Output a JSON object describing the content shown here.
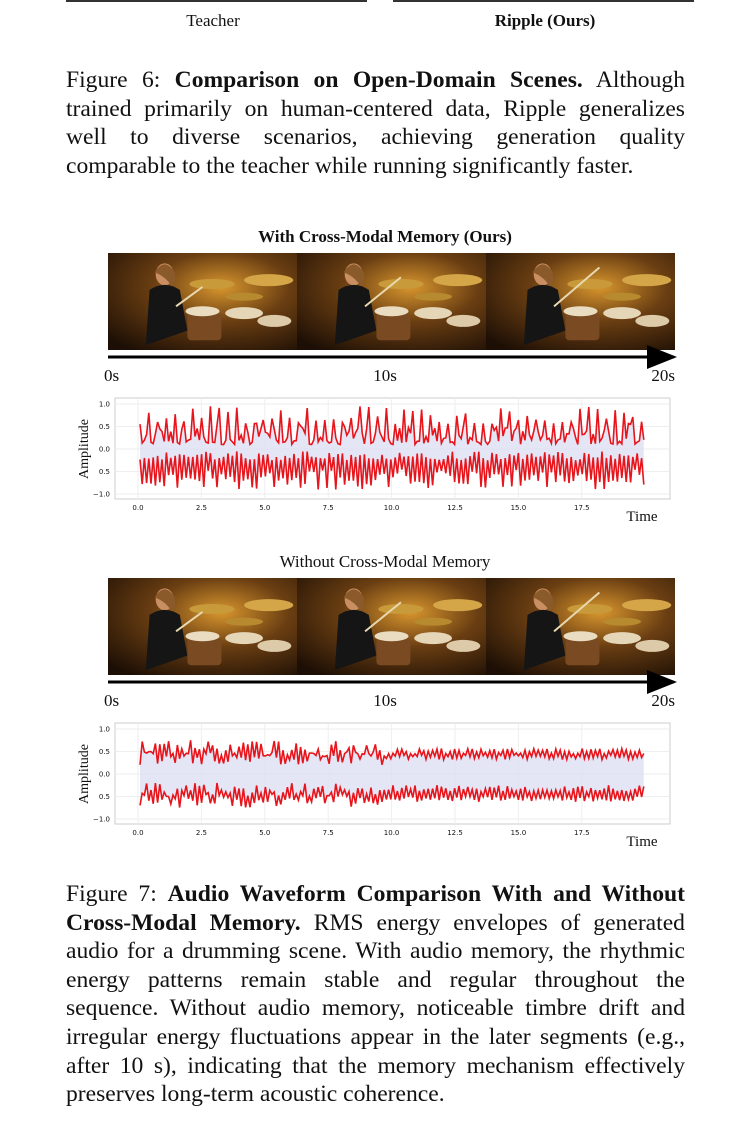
{
  "figure6_panels": {
    "labels": [
      "Teacher",
      "Ripple (Ours)"
    ]
  },
  "figure6": {
    "label": "Figure 6:",
    "title": "Comparison on Open-Domain Scenes.",
    "text": "Although trained primarily on human-centered data, Ripple generalizes well to diverse scenarios, achieving generation quality comparable to the teacher while running significantly faster."
  },
  "figure7": {
    "panels": [
      {
        "title": "With Cross-Modal Memory (Ours)",
        "time_labels": [
          "0s",
          "10s",
          "20s"
        ],
        "y_axis_label": "Amplitude",
        "x_axis_label": "Time",
        "yticks": [
          "1.0",
          "0.5",
          "0.0",
          "0.5",
          "−1.0"
        ],
        "xticks": [
          "0.0",
          "2.5",
          "5.0",
          "7.5",
          "10.0",
          "12.5",
          "15.0",
          "17.5"
        ]
      },
      {
        "title": "Without Cross-Modal Memory",
        "time_labels": [
          "0s",
          "10s",
          "20s"
        ],
        "y_axis_label": "Amplitude",
        "x_axis_label": "Time",
        "yticks": [
          "1.0",
          "0.5",
          "0.0",
          "0.5",
          "−1.0"
        ],
        "xticks": [
          "0.0",
          "2.5",
          "5.0",
          "7.5",
          "10.0",
          "12.5",
          "15.0",
          "17.5"
        ]
      }
    ],
    "label": "Figure 7:",
    "title": "Audio Waveform Comparison With and Without Cross-Modal Memory.",
    "text": "RMS energy envelopes of generated audio for a drumming scene. With audio memory, the rhythmic energy patterns remain stable and regular throughout the sequence. Without audio memory, noticeable timbre drift and irregular energy fluctuations appear in the later segments (e.g., after 10 s), indicating that the memory mechanism effectively preserves long-term acoustic coherence."
  }
}
